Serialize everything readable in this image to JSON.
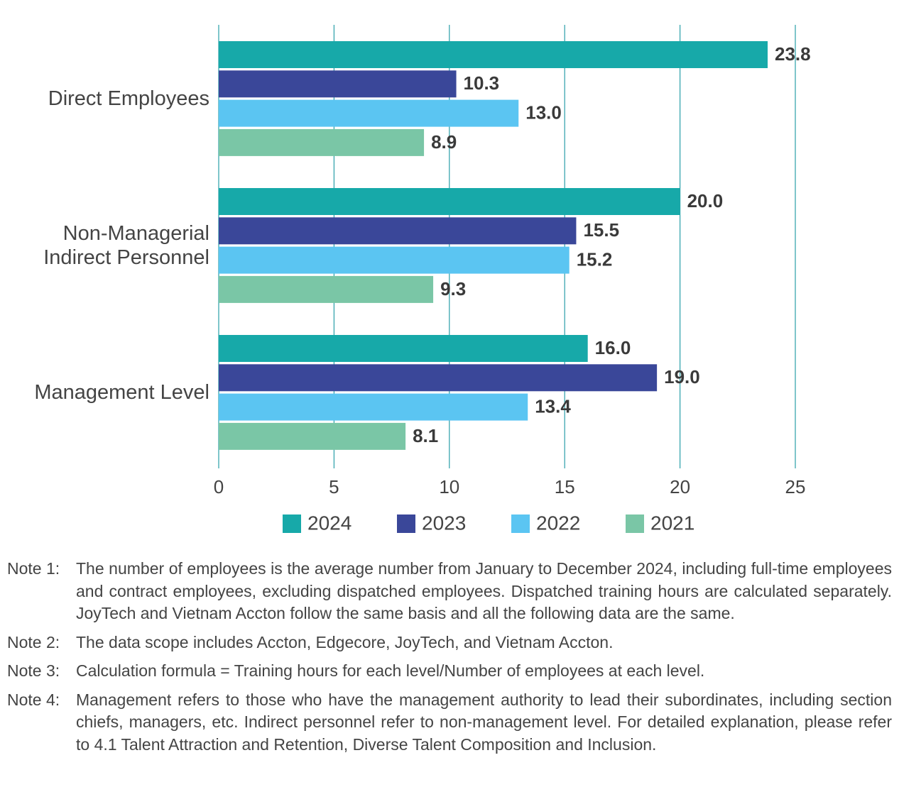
{
  "chart_data": {
    "type": "barh",
    "categories": [
      "Direct Employees",
      "Non-Managerial Indirect Personnel",
      "Management Level"
    ],
    "series": [
      {
        "name": "2024",
        "color": "#17a9a9",
        "values": [
          23.8,
          20.0,
          16.0
        ],
        "value_labels": [
          "23.8",
          "20.0",
          "16.0"
        ]
      },
      {
        "name": "2023",
        "color": "#3a4799",
        "values": [
          10.3,
          15.5,
          19.0
        ],
        "value_labels": [
          "10.3",
          "15.5",
          "19.0"
        ]
      },
      {
        "name": "2022",
        "color": "#5bc5f2",
        "values": [
          13.0,
          15.2,
          13.4
        ],
        "value_labels": [
          "13.0",
          "15.2",
          "13.4"
        ]
      },
      {
        "name": "2021",
        "color": "#7ac6a6",
        "values": [
          8.9,
          9.3,
          8.1
        ],
        "value_labels": [
          "8.9",
          "9.3",
          "8.1"
        ]
      }
    ],
    "xlim": [
      0,
      25
    ],
    "xticks": [
      0,
      5,
      10,
      15,
      20,
      25
    ],
    "grid": true,
    "legend": "bottom"
  },
  "notes": [
    {
      "label": "Note 1:",
      "text": "The number of employees is the average number from January to December 2024, including full-time employees and contract employees, excluding dispatched employees. Dispatched training hours are calculated separately. JoyTech and Vietnam Accton follow the same basis and all the following data are the same."
    },
    {
      "label": "Note 2:",
      "text": "The data scope includes Accton, Edgecore, JoyTech, and Vietnam Accton."
    },
    {
      "label": "Note 3:",
      "text": "Calculation formula = Training hours for each level/Number of employees at each level."
    },
    {
      "label": "Note 4:",
      "text": "Management refers to those who have the management authority to lead their subordinates, including section chiefs, managers, etc. Indirect personnel refer to non-management level. For detailed explanation, please refer to 4.1 Talent Attraction and Retention, Diverse Talent Composition and Inclusion."
    }
  ]
}
